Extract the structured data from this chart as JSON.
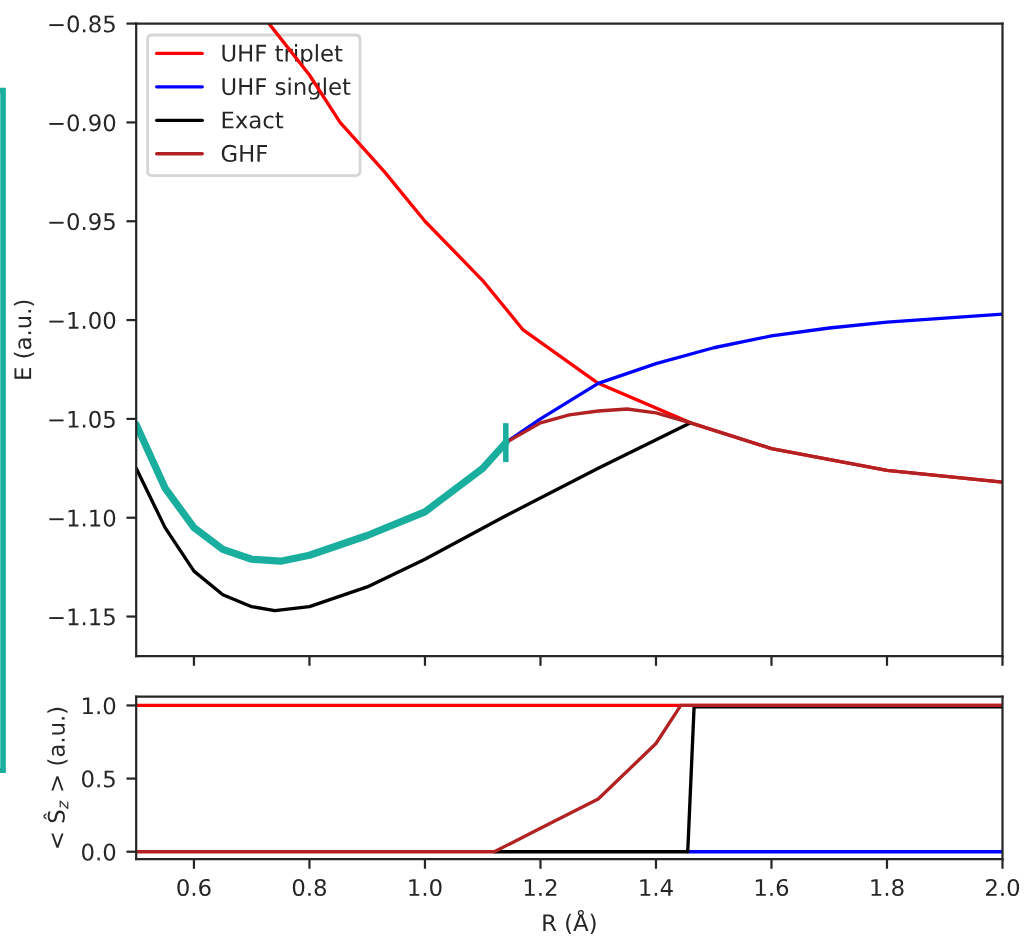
{
  "chart_data": [
    {
      "type": "line",
      "ylabel": "E (a.u.)",
      "xlim": [
        0.5,
        2.0
      ],
      "ylim": [
        -1.17,
        -0.85
      ],
      "tick_labels": "y",
      "legend": "top left",
      "grid": false,
      "xticks": [
        {
          "value": 0.6,
          "label": null
        },
        {
          "value": 0.8,
          "label": null
        },
        {
          "value": 1.0,
          "label": null
        },
        {
          "value": 1.2,
          "label": null
        },
        {
          "value": 1.4,
          "label": null
        },
        {
          "value": 1.6,
          "label": null
        },
        {
          "value": 1.8,
          "label": null
        },
        {
          "value": 2.0,
          "label": null
        }
      ],
      "yticks": [
        {
          "value": -1.15,
          "label": "−1.15"
        },
        {
          "value": -1.1,
          "label": "−1.10"
        },
        {
          "value": -1.05,
          "label": "−1.05"
        },
        {
          "value": -1.0,
          "label": "−1.00"
        },
        {
          "value": -0.95,
          "label": "−0.95"
        },
        {
          "value": -0.9,
          "label": "−0.90"
        },
        {
          "value": -0.85,
          "label": "−0.85"
        }
      ],
      "series": [
        {
          "name": "UHF triplet",
          "color": "#ff0000",
          "x": [
            0.73,
            0.8,
            0.853,
            0.93,
            1.0,
            1.1,
            1.17,
            1.3,
            1.46,
            1.6,
            1.8,
            2.0
          ],
          "values": [
            -0.85,
            -0.876,
            -0.9,
            -0.925,
            -0.95,
            -0.98,
            -1.005,
            -1.032,
            -1.052,
            -1.065,
            -1.076,
            -1.082
          ]
        },
        {
          "name": "UHF singlet",
          "color": "#0000ff",
          "x": [
            1.14,
            1.2,
            1.3,
            1.4,
            1.5,
            1.6,
            1.7,
            1.8,
            1.9,
            2.0
          ],
          "values": [
            -1.062,
            -1.05,
            -1.032,
            -1.022,
            -1.014,
            -1.008,
            -1.004,
            -1.001,
            -0.999,
            -0.997
          ]
        },
        {
          "name": "Exact",
          "color": "#000000",
          "x": [
            0.5,
            0.55,
            0.6,
            0.65,
            0.7,
            0.74,
            0.8,
            0.9,
            1.0,
            1.14,
            1.3,
            1.46
          ],
          "values": [
            -1.075,
            -1.105,
            -1.127,
            -1.139,
            -1.145,
            -1.147,
            -1.145,
            -1.135,
            -1.121,
            -1.099,
            -1.075,
            -1.052
          ]
        },
        {
          "name": "GHF",
          "color": "#b22222",
          "x": [
            1.14,
            1.2,
            1.25,
            1.3,
            1.35,
            1.4,
            1.46,
            1.6,
            1.8,
            2.0
          ],
          "values": [
            -1.062,
            -1.052,
            -1.048,
            -1.046,
            -1.045,
            -1.047,
            -1.052,
            -1.065,
            -1.076,
            -1.082
          ]
        },
        {
          "color": "#1aae9f",
          "x": [
            0.5,
            0.55,
            0.6,
            0.65,
            0.7,
            0.75,
            0.8,
            0.9,
            1.0,
            1.1,
            1.14
          ],
          "values": [
            -1.053,
            -1.085,
            -1.105,
            -1.116,
            -1.121,
            -1.122,
            -1.119,
            -1.109,
            -1.097,
            -1.075,
            -1.062
          ]
        }
      ]
    },
    {
      "type": "line",
      "xlabel": "R (Å)",
      "ylabel": "< Ŝ$_{z}$ > (a.u.)",
      "xlim": [
        0.5,
        2.0
      ],
      "ylim": [
        -0.05,
        1.06
      ],
      "grid": false,
      "xticks": [
        0.6,
        0.8,
        {
          "value": 1.0,
          "label": "1.0"
        },
        1.2,
        1.4,
        1.6,
        1.8,
        {
          "value": 2.0,
          "label": "2.0"
        }
      ],
      "yticks": [
        {
          "value": 0.0,
          "label": "0.0"
        },
        0.5,
        {
          "value": 1.0,
          "label": "1.0"
        }
      ],
      "series": [
        {
          "color": "#0000ff",
          "x": [
            1.455,
            2.0
          ],
          "values": [
            0.0,
            0.0
          ]
        },
        {
          "color": "#ff0000",
          "x": [
            0.5,
            2.0
          ],
          "values": [
            1.0,
            1.0
          ]
        },
        {
          "color": "#000000",
          "x": [
            1.12,
            1.455,
            1.466,
            2.0
          ],
          "values": [
            0.0,
            0.0,
            0.99,
            0.99
          ]
        },
        {
          "color": "#b22222",
          "x": [
            0.5,
            1.12,
            1.2,
            1.3,
            1.4,
            1.443,
            2.0
          ],
          "values": [
            0.0,
            0.0,
            0.16,
            0.36,
            0.74,
            1.0,
            1.0
          ]
        }
      ]
    }
  ]
}
